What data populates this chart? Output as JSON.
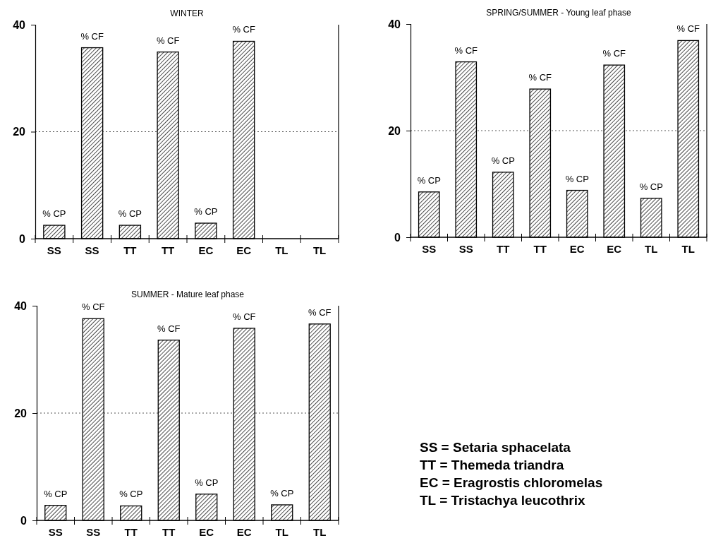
{
  "chart_data": [
    {
      "type": "bar",
      "title": "WINTER",
      "categories": [
        "SS",
        "SS",
        "TT",
        "TT",
        "EC",
        "EC",
        "TL",
        "TL"
      ],
      "values": [
        2.5,
        35.7,
        2.5,
        34.9,
        2.9,
        36.9,
        null,
        null
      ],
      "value_labels": [
        "% CP",
        "% CF",
        "% CP",
        "% CF",
        "% CP",
        "% CF",
        null,
        null
      ],
      "color": "#000000",
      "ylim": [
        0,
        40
      ],
      "yticks": [
        0,
        20,
        40
      ],
      "ref_lines": [
        {
          "axis": "y",
          "value": 20,
          "line_style": "dotted",
          "color": "#555555"
        }
      ]
    },
    {
      "type": "bar",
      "title": "SPRING/SUMMER - Young leaf phase",
      "categories": [
        "SS",
        "SS",
        "TT",
        "TT",
        "EC",
        "EC",
        "TL",
        "TL"
      ],
      "values": [
        8.5,
        32.9,
        12.2,
        27.8,
        8.8,
        32.3,
        7.3,
        36.9
      ],
      "value_labels": [
        "% CP",
        "% CF",
        "% CP",
        "% CF",
        "% CP",
        "% CF",
        "% CP",
        "% CF"
      ],
      "color": "#000000",
      "ylim": [
        0,
        40
      ],
      "yticks": [
        0,
        20,
        40
      ],
      "ref_lines": [
        {
          "axis": "y",
          "value": 20,
          "line_style": "dotted",
          "color": "#555555"
        }
      ]
    },
    {
      "type": "bar",
      "title": "SUMMER - Mature leaf phase",
      "categories": [
        "SS",
        "SS",
        "TT",
        "TT",
        "EC",
        "EC",
        "TL",
        "TL"
      ],
      "values": [
        2.8,
        37.6,
        2.7,
        33.6,
        4.9,
        35.8,
        2.9,
        36.6
      ],
      "value_labels": [
        "% CP",
        "% CF",
        "% CP",
        "% CF",
        "% CP",
        "% CF",
        "% CP",
        "% CF"
      ],
      "color": "#000000",
      "ylim": [
        0,
        40
      ],
      "yticks": [
        0,
        20,
        40
      ],
      "ref_lines": [
        {
          "axis": "y",
          "value": 20,
          "line_style": "dotted",
          "color": "#555555"
        }
      ]
    },
    {
      "type": "other",
      "annotations": [
        "SS = Setaria sphacelata",
        "TT = Themeda triandra",
        "EC = Eragrostis chloromelas",
        "TL = Tristachya leucothrix"
      ]
    }
  ]
}
